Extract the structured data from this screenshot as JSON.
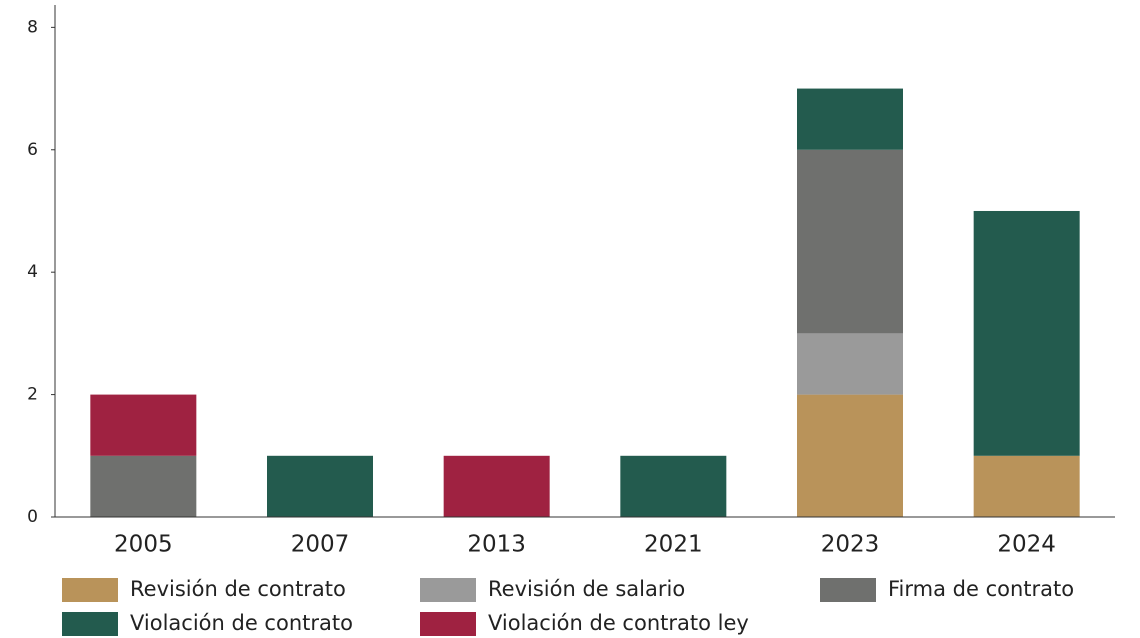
{
  "chart_data": {
    "type": "stacked_bar",
    "categories": [
      "2005",
      "2007",
      "2013",
      "2021",
      "2023",
      "2024"
    ],
    "series": [
      {
        "name": "Revisión de contrato",
        "color": "#b9935a",
        "values": [
          0,
          0,
          0,
          0,
          2,
          1
        ]
      },
      {
        "name": "Revisión de salario",
        "color": "#9a9a9a",
        "values": [
          0,
          0,
          0,
          0,
          1,
          0
        ]
      },
      {
        "name": "Firma de contrato",
        "color": "#6f706e",
        "values": [
          1,
          0,
          0,
          0,
          3,
          0
        ]
      },
      {
        "name": "Violación de contrato",
        "color": "#235b4e",
        "values": [
          0,
          1,
          0,
          1,
          1,
          4
        ]
      },
      {
        "name": "Violación de contrato ley",
        "color": "#9f2241",
        "values": [
          1,
          0,
          1,
          0,
          0,
          0
        ]
      }
    ],
    "ylim": [
      0,
      8.3
    ],
    "yticks": [
      0,
      2,
      4,
      6,
      8
    ],
    "grid": false,
    "legend": "bottom"
  }
}
